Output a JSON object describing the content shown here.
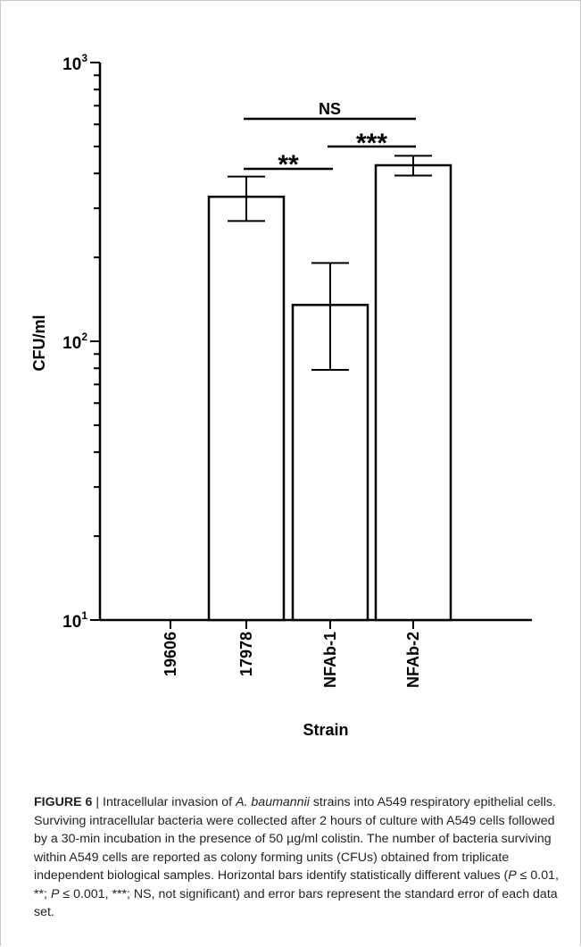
{
  "chart_data": {
    "type": "bar",
    "categories": [
      "19606",
      "17978",
      "NFAb-1",
      "NFAb-2"
    ],
    "values": [
      null,
      330,
      135,
      428
    ],
    "errors": [
      null,
      60,
      56,
      35
    ],
    "xlabel": "Strain",
    "ylabel": "CFU/ml",
    "yscale": "log",
    "ylim": [
      10,
      1000
    ],
    "ytick_labels": [
      {
        "value": 10,
        "base": "10",
        "exp": "1"
      },
      {
        "value": 100,
        "base": "10",
        "exp": "2"
      },
      {
        "value": 1000,
        "base": "10",
        "exp": "3"
      }
    ],
    "significance": [
      {
        "from": "17978",
        "to": "NFAb-2",
        "label": "NS"
      },
      {
        "from": "17978",
        "to": "NFAb-1",
        "label": "**"
      },
      {
        "from": "NFAb-1",
        "to": "NFAb-2",
        "label": "***"
      }
    ]
  },
  "caption": {
    "figure_label": "FIGURE 6",
    "separator": " | ",
    "text_before_italic": "Intracellular invasion of ",
    "italic": "A. baumannii",
    "text_main": " strains into A549 respiratory epithelial cells. Surviving intracellular bacteria were collected after 2 hours of culture with A549 cells followed by a 30-min incubation in the presence of 50 µg/ml colistin. The number of bacteria surviving within A549 cells are reported as colony forming units (CFUs) obtained from triplicate independent biological samples. Horizontal bars identify statistically different values (",
    "p1_italic": "P",
    "p1_text": " ≤ 0.01, **; ",
    "p2_italic": "P",
    "p2_text": " ≤ 0.001, ***; NS, not significant) and error bars represent the standard error of each data set."
  }
}
